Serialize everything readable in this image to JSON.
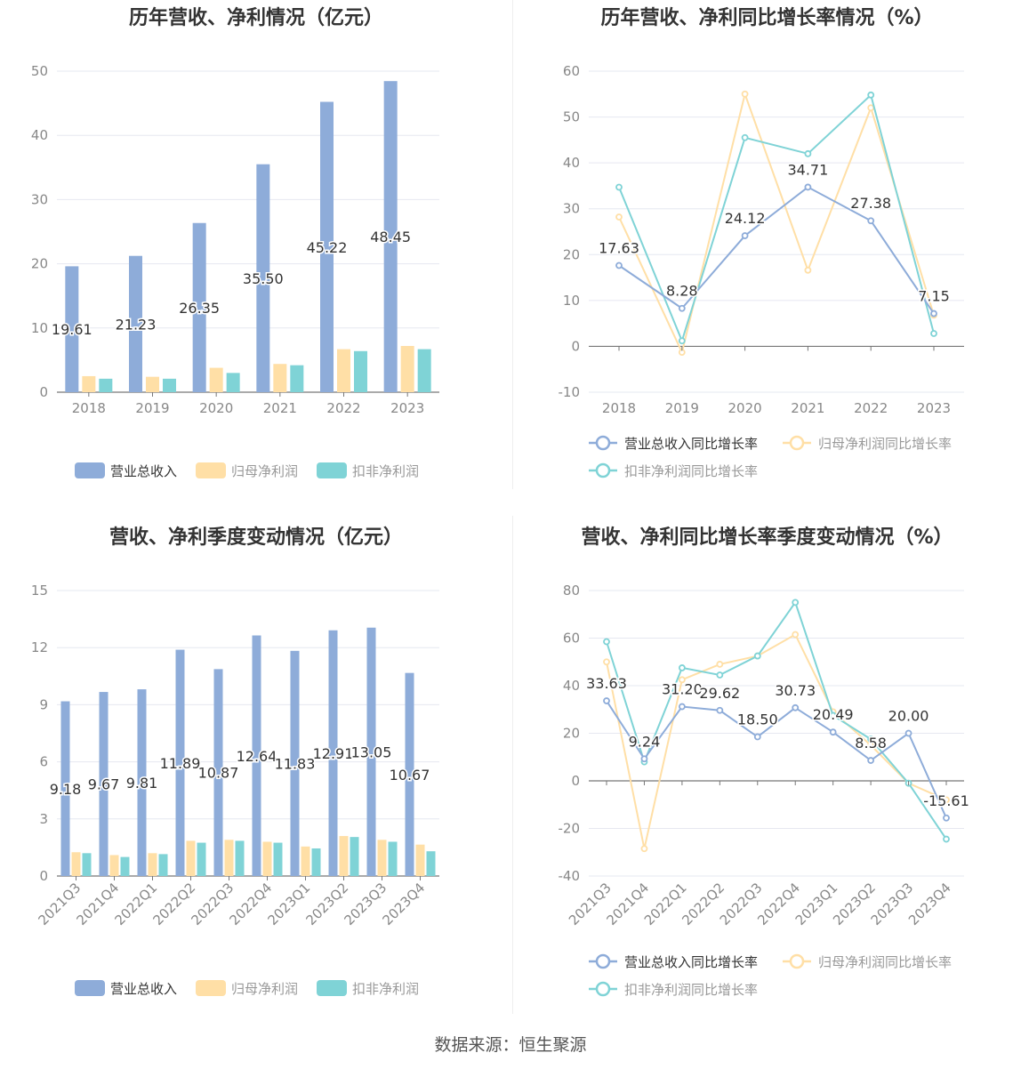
{
  "source_label": "数据来源：恒生聚源",
  "colors": {
    "revenue": "#8eacd9",
    "net_profit": "#ffdfa6",
    "deducted": "#7fd3d6",
    "grid": "#e6e8f0",
    "axis": "#888888",
    "label": "#333333"
  },
  "chart_data": [
    {
      "type": "bar",
      "title": "历年营收、净利情况（亿元）",
      "categories": [
        "2018",
        "2019",
        "2020",
        "2021",
        "2022",
        "2023"
      ],
      "ylim": [
        0,
        50
      ],
      "yticks": [
        "0",
        "10",
        "20",
        "30",
        "40",
        "50"
      ],
      "series": [
        {
          "name": "营业总收入",
          "values": [
            19.61,
            21.23,
            26.35,
            35.5,
            45.22,
            48.45
          ],
          "labels": [
            "19.61",
            "21.23",
            "26.35",
            "35.50",
            "45.22",
            "48.45"
          ]
        },
        {
          "name": "归母净利润",
          "values": [
            2.5,
            2.4,
            3.8,
            4.4,
            6.7,
            7.2
          ]
        },
        {
          "name": "扣非净利润",
          "values": [
            2.1,
            2.1,
            3.0,
            4.2,
            6.4,
            6.7
          ]
        }
      ],
      "legend": "bottom"
    },
    {
      "type": "line",
      "title": "历年营收、净利同比增长率情况（%）",
      "categories": [
        "2018",
        "2019",
        "2020",
        "2021",
        "2022",
        "2023"
      ],
      "ylim": [
        -10,
        60
      ],
      "yticks": [
        "-10",
        "0",
        "10",
        "20",
        "30",
        "40",
        "50",
        "60"
      ],
      "series": [
        {
          "name": "营业总收入同比增长率",
          "values": [
            17.63,
            8.28,
            24.12,
            34.71,
            27.38,
            7.15
          ],
          "labels": [
            "17.63",
            "8.28",
            "24.12",
            "34.71",
            "27.38",
            "7.15"
          ]
        },
        {
          "name": "归母净利润同比增长率",
          "values": [
            28.2,
            -1.3,
            55.0,
            16.6,
            52.0,
            6.8
          ]
        },
        {
          "name": "扣非净利润同比增长率",
          "values": [
            34.7,
            1.2,
            45.5,
            42.0,
            54.8,
            2.8
          ]
        }
      ],
      "legend": "bottom"
    },
    {
      "type": "bar",
      "title": "营收、净利季度变动情况（亿元）",
      "categories": [
        "2021Q3",
        "2021Q4",
        "2022Q1",
        "2022Q2",
        "2022Q3",
        "2022Q4",
        "2023Q1",
        "2023Q2",
        "2023Q3",
        "2023Q4"
      ],
      "ylim": [
        0,
        15
      ],
      "yticks": [
        "0",
        "3",
        "6",
        "9",
        "12",
        "15"
      ],
      "series": [
        {
          "name": "营业总收入",
          "values": [
            9.18,
            9.67,
            9.81,
            11.89,
            10.87,
            12.64,
            11.83,
            12.91,
            13.05,
            10.67
          ],
          "labels": [
            "9.18",
            "9.67",
            "9.81",
            "11.89",
            "10.87",
            "12.64",
            "11.83",
            "12.91",
            "13.05",
            "10.67"
          ]
        },
        {
          "name": "归母净利润",
          "values": [
            1.25,
            1.1,
            1.2,
            1.85,
            1.9,
            1.8,
            1.55,
            2.1,
            1.9,
            1.65
          ]
        },
        {
          "name": "扣非净利润",
          "values": [
            1.2,
            1.0,
            1.15,
            1.75,
            1.85,
            1.75,
            1.45,
            2.05,
            1.8,
            1.3
          ]
        }
      ],
      "legend": "bottom"
    },
    {
      "type": "line",
      "title": "营收、净利同比增长率季度变动情况（%）",
      "categories": [
        "2021Q3",
        "2021Q4",
        "2022Q1",
        "2022Q2",
        "2022Q3",
        "2022Q4",
        "2023Q1",
        "2023Q2",
        "2023Q3",
        "2023Q4"
      ],
      "ylim": [
        -40,
        80
      ],
      "yticks": [
        "-40",
        "-20",
        "0",
        "20",
        "40",
        "60",
        "80"
      ],
      "series": [
        {
          "name": "营业总收入同比增长率",
          "values": [
            33.63,
            9.24,
            31.2,
            29.62,
            18.5,
            30.73,
            20.49,
            8.58,
            20.0,
            -15.61
          ],
          "labels": [
            "33.63",
            "9.24",
            "31.20",
            "29.62",
            "18.50",
            "30.73",
            "20.49",
            "8.58",
            "20.00",
            "-15.61"
          ]
        },
        {
          "name": "归母净利润同比增长率",
          "values": [
            50.0,
            -28.5,
            42.5,
            49.0,
            52.5,
            61.5,
            29.0,
            15.0,
            -1.0,
            -8.0
          ]
        },
        {
          "name": "扣非净利润同比增长率",
          "values": [
            58.5,
            8.0,
            47.5,
            44.5,
            52.5,
            75.0,
            27.5,
            17.5,
            -1.0,
            -24.5
          ]
        }
      ],
      "legend": "bottom"
    }
  ]
}
